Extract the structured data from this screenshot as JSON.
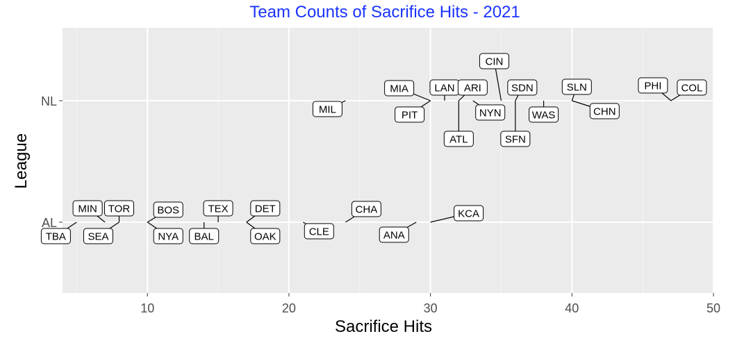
{
  "chart_data": {
    "type": "scatter",
    "title": "Team Counts of Sacrifice Hits - 2021",
    "xlabel": "Sacrifice Hits",
    "ylabel": "League",
    "xlim": [
      4,
      50
    ],
    "x_ticks": [
      10,
      20,
      30,
      40,
      50
    ],
    "y_categories": [
      "AL",
      "NL"
    ],
    "grid": true,
    "legend": "none",
    "colors": {
      "title": "#1a33ff",
      "panel": "#ebebeb",
      "grid_major": "#ffffff",
      "grid_minor": "#f5f5f5",
      "label_border": "#000000",
      "label_fill": "#ffffff"
    },
    "points": [
      {
        "team": "TBA",
        "league": "AL",
        "x": 5
      },
      {
        "team": "MIN",
        "league": "AL",
        "x": 7
      },
      {
        "team": "SEA",
        "league": "AL",
        "x": 8
      },
      {
        "team": "TOR",
        "league": "AL",
        "x": 8
      },
      {
        "team": "BOS",
        "league": "AL",
        "x": 10
      },
      {
        "team": "NYA",
        "league": "AL",
        "x": 10
      },
      {
        "team": "BAL",
        "league": "AL",
        "x": 14
      },
      {
        "team": "TEX",
        "league": "AL",
        "x": 15
      },
      {
        "team": "DET",
        "league": "AL",
        "x": 17
      },
      {
        "team": "OAK",
        "league": "AL",
        "x": 17
      },
      {
        "team": "CLE",
        "league": "AL",
        "x": 21
      },
      {
        "team": "CHA",
        "league": "AL",
        "x": 24
      },
      {
        "team": "ANA",
        "league": "AL",
        "x": 29
      },
      {
        "team": "KCA",
        "league": "AL",
        "x": 30
      },
      {
        "team": "MIL",
        "league": "NL",
        "x": 24
      },
      {
        "team": "MIA",
        "league": "NL",
        "x": 30
      },
      {
        "team": "PIT",
        "league": "NL",
        "x": 30
      },
      {
        "team": "LAN",
        "league": "NL",
        "x": 31
      },
      {
        "team": "ATL",
        "league": "NL",
        "x": 32
      },
      {
        "team": "ARI",
        "league": "NL",
        "x": 32
      },
      {
        "team": "NYN",
        "league": "NL",
        "x": 33
      },
      {
        "team": "CIN",
        "league": "NL",
        "x": 35
      },
      {
        "team": "SDN",
        "league": "NL",
        "x": 36
      },
      {
        "team": "SFN",
        "league": "NL",
        "x": 36
      },
      {
        "team": "WAS",
        "league": "NL",
        "x": 38
      },
      {
        "team": "SLN",
        "league": "NL",
        "x": 40
      },
      {
        "team": "CHN",
        "league": "NL",
        "x": 40
      },
      {
        "team": "PHI",
        "league": "NL",
        "x": 47
      },
      {
        "team": "COL",
        "league": "NL",
        "x": 47
      }
    ]
  }
}
